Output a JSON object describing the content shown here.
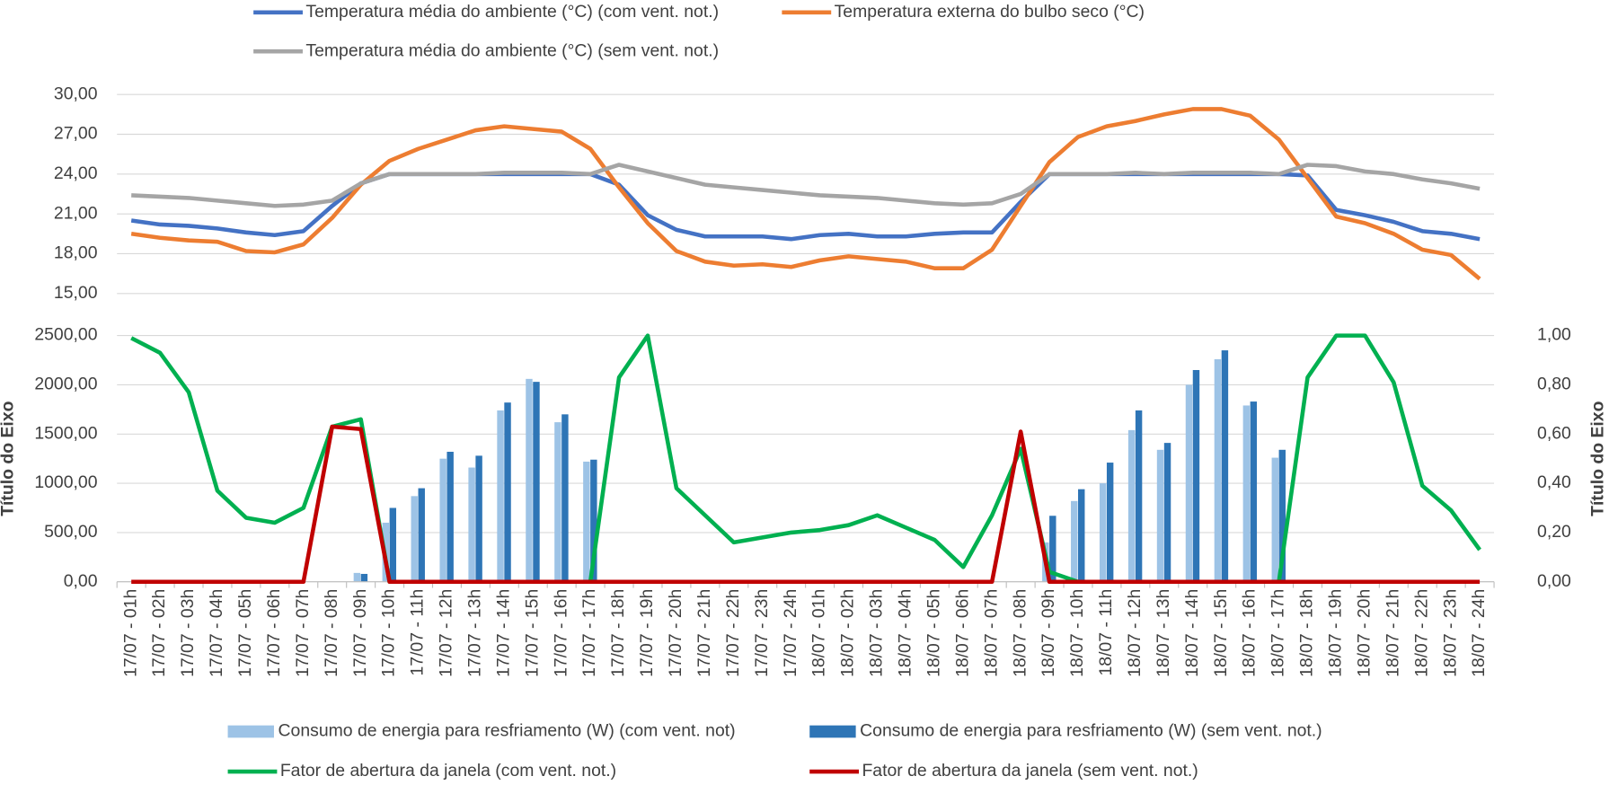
{
  "chart_data": [
    {
      "type": "line",
      "ylim": [
        15,
        30
      ],
      "yticks": [
        {
          "value": 15,
          "label": "15,00"
        },
        {
          "value": 18,
          "label": "18,00"
        },
        {
          "value": 21,
          "label": "21,00"
        },
        {
          "value": 24,
          "label": "24,00"
        },
        {
          "value": 27,
          "label": "27,00"
        },
        {
          "value": 30,
          "label": "30,00"
        }
      ],
      "grid": true,
      "legend": "top",
      "series": [
        {
          "name": "Temperatura média do ambiente (°C) (com vent. not.)",
          "color": "#4472c4",
          "values": [
            20.5,
            20.2,
            20.1,
            19.9,
            19.6,
            19.4,
            19.7,
            21.6,
            23.3,
            24.0,
            24.0,
            24.0,
            24.0,
            24.0,
            24.0,
            24.0,
            24.0,
            23.2,
            20.9,
            19.8,
            19.3,
            19.3,
            19.3,
            19.1,
            19.4,
            19.5,
            19.3,
            19.3,
            19.5,
            19.6,
            19.6,
            21.9,
            24.0,
            24.0,
            24.0,
            24.0,
            24.0,
            24.0,
            24.0,
            24.0,
            24.0,
            23.9,
            21.3,
            20.9,
            20.4,
            19.7,
            19.5,
            19.1
          ]
        },
        {
          "name": "Temperatura externa do bulbo seco (°C)",
          "color": "#ed7d31",
          "values": [
            19.5,
            19.2,
            19.0,
            18.9,
            18.2,
            18.1,
            18.7,
            20.7,
            23.2,
            25.0,
            25.9,
            26.6,
            27.3,
            27.6,
            27.4,
            27.2,
            25.9,
            23.0,
            20.3,
            18.2,
            17.4,
            17.1,
            17.2,
            17.0,
            17.5,
            17.8,
            17.6,
            17.4,
            16.9,
            16.9,
            18.3,
            21.6,
            24.9,
            26.8,
            27.6,
            28.0,
            28.5,
            28.9,
            28.9,
            28.4,
            26.6,
            23.7,
            20.8,
            20.3,
            19.5,
            18.3,
            17.9,
            16.1
          ]
        },
        {
          "name": "Temperatura média do ambiente (°C) (sem vent. not.)",
          "color": "#a5a5a5",
          "values": [
            22.4,
            22.3,
            22.2,
            22.0,
            21.8,
            21.6,
            21.7,
            22.0,
            23.3,
            24.0,
            24.0,
            24.0,
            24.0,
            24.1,
            24.1,
            24.1,
            24.0,
            24.7,
            24.2,
            23.7,
            23.2,
            23.0,
            22.8,
            22.6,
            22.4,
            22.3,
            22.2,
            22.0,
            21.8,
            21.7,
            21.8,
            22.5,
            24.0,
            24.0,
            24.0,
            24.1,
            24.0,
            24.1,
            24.1,
            24.1,
            24.0,
            24.7,
            24.6,
            24.2,
            24.0,
            23.6,
            23.3,
            22.9
          ]
        }
      ]
    },
    {
      "type": "combo",
      "categories": [
        "17/07 - 01h",
        "17/07 - 02h",
        "17/07 - 03h",
        "17/07 - 04h",
        "17/07 - 05h",
        "17/07 - 06h",
        "17/07 - 07h",
        "17/07 - 08h",
        "17/07 - 09h",
        "17/07 - 10h",
        "17/07 - 11h",
        "17/07 - 12h",
        "17/07 - 13h",
        "17/07 - 14h",
        "17/07 - 15h",
        "17/07 - 16h",
        "17/07 - 17h",
        "17/07 - 18h",
        "17/07 - 19h",
        "17/07 - 20h",
        "17/07 - 21h",
        "17/07 - 22h",
        "17/07 - 23h",
        "17/07 - 24h",
        "18/07 - 01h",
        "18/07 - 02h",
        "18/07 - 03h",
        "18/07 - 04h",
        "18/07 - 05h",
        "18/07 - 06h",
        "18/07 - 07h",
        "18/07 - 08h",
        "18/07 - 09h",
        "18/07 - 10h",
        "18/07 - 11h",
        "18/07 - 12h",
        "18/07 - 13h",
        "18/07 - 14h",
        "18/07 - 15h",
        "18/07 - 16h",
        "18/07 - 17h",
        "18/07 - 18h",
        "18/07 - 19h",
        "18/07 - 20h",
        "18/07 - 21h",
        "18/07 - 22h",
        "18/07 - 23h",
        "18/07 - 24h"
      ],
      "ylabel": "Título do Eixo",
      "y2label": "Título do Eixo",
      "ylim": [
        0,
        2500
      ],
      "yticks": [
        {
          "value": 0,
          "label": "0,00"
        },
        {
          "value": 500,
          "label": "500,00"
        },
        {
          "value": 1000,
          "label": "1000,00"
        },
        {
          "value": 1500,
          "label": "1500,00"
        },
        {
          "value": 2000,
          "label": "2000,00"
        },
        {
          "value": 2500,
          "label": "2500,00"
        }
      ],
      "y2lim": [
        0,
        1
      ],
      "y2ticks": [
        {
          "value": 0,
          "label": "0,00"
        },
        {
          "value": 0.2,
          "label": "0,20"
        },
        {
          "value": 0.4,
          "label": "0,40"
        },
        {
          "value": 0.6,
          "label": "0,60"
        },
        {
          "value": 0.8,
          "label": "0,80"
        },
        {
          "value": 1,
          "label": "1,00"
        }
      ],
      "grid": true,
      "legend": "bottom",
      "series": [
        {
          "name": "Consumo de energia para resfriamento (W) (com vent. not)",
          "type": "bar",
          "color": "#9dc3e6",
          "values": [
            0,
            0,
            0,
            0,
            0,
            0,
            0,
            0,
            90,
            600,
            870,
            1250,
            1160,
            1740,
            2060,
            1620,
            1220,
            0,
            0,
            0,
            0,
            0,
            0,
            0,
            0,
            0,
            0,
            0,
            0,
            0,
            0,
            0,
            400,
            820,
            1000,
            1540,
            1340,
            2000,
            2260,
            1790,
            1260,
            0,
            0,
            0,
            0,
            0,
            0,
            0
          ]
        },
        {
          "name": "Consumo de energia para resfriamento (W) (sem vent. not.)",
          "type": "bar",
          "color": "#2e75b6",
          "values": [
            0,
            0,
            0,
            0,
            0,
            0,
            0,
            0,
            80,
            750,
            950,
            1320,
            1280,
            1820,
            2030,
            1700,
            1240,
            0,
            0,
            0,
            0,
            0,
            0,
            0,
            0,
            0,
            0,
            0,
            0,
            0,
            0,
            0,
            670,
            940,
            1210,
            1740,
            1410,
            2150,
            2350,
            1830,
            1340,
            0,
            0,
            0,
            0,
            0,
            0,
            0
          ]
        },
        {
          "name": "Fator de abertura da janela (com vent. not.)",
          "type": "line",
          "axis": "y2",
          "color": "#00b050",
          "values": [
            0.99,
            0.93,
            0.77,
            0.37,
            0.26,
            0.24,
            0.3,
            0.63,
            0.66,
            0,
            0,
            0,
            0,
            0,
            0,
            0,
            0,
            0.83,
            1.0,
            0.38,
            0.27,
            0.16,
            0.18,
            0.2,
            0.21,
            0.23,
            0.27,
            0.22,
            0.17,
            0.06,
            0.27,
            0.54,
            0.04,
            0,
            0,
            0,
            0,
            0,
            0,
            0,
            0,
            0.83,
            1.0,
            1.0,
            0.81,
            0.39,
            0.29,
            0.13
          ]
        },
        {
          "name": "Fator de abertura da janela (sem vent. not.)",
          "type": "line",
          "axis": "y2",
          "color": "#c00000",
          "values": [
            0,
            0,
            0,
            0,
            0,
            0,
            0,
            0.63,
            0.62,
            0,
            0,
            0,
            0,
            0,
            0,
            0,
            0,
            0,
            0,
            0,
            0,
            0,
            0,
            0,
            0,
            0,
            0,
            0,
            0,
            0,
            0,
            0.61,
            0,
            0,
            0,
            0,
            0,
            0,
            0,
            0,
            0,
            0,
            0,
            0,
            0,
            0,
            0,
            0
          ]
        }
      ]
    }
  ]
}
